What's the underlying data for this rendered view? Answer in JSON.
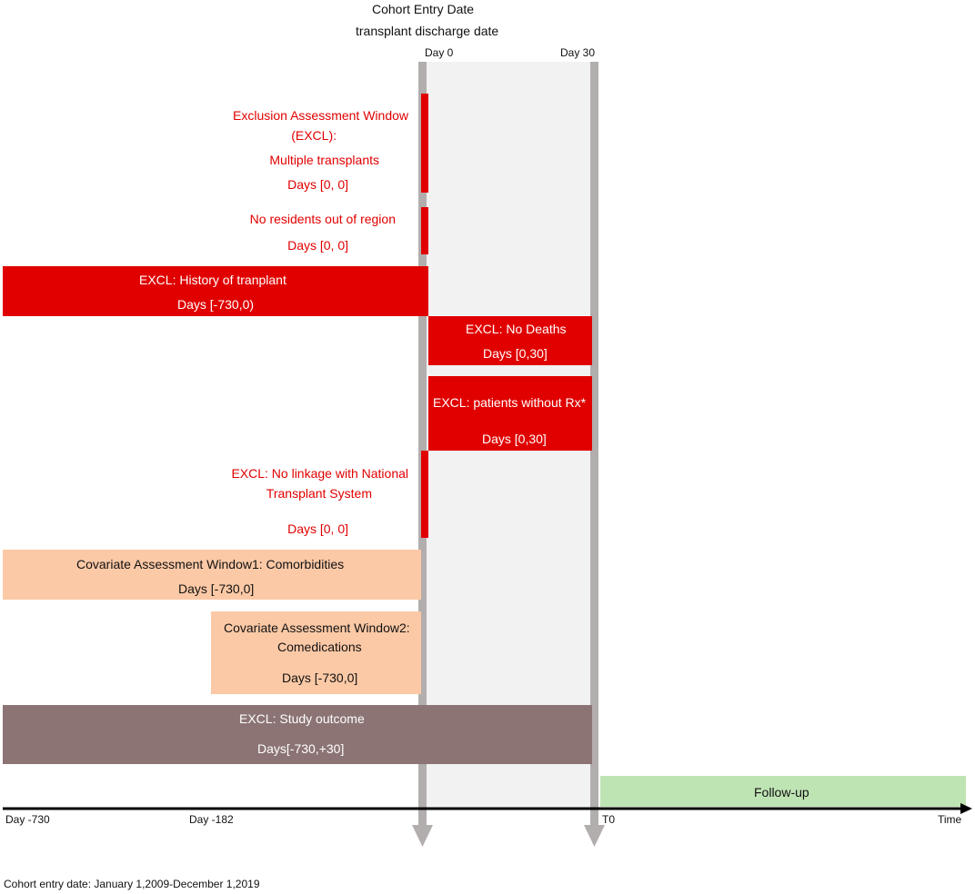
{
  "header": {
    "title": "Cohort Entry Date",
    "subtitle": "transplant discharge date",
    "day0": "Day 0",
    "day30": "Day 30"
  },
  "excl_multiple": {
    "line1": "Exclusion Assessment Window",
    "line2": "(EXCL):",
    "line3": "Multiple transplants",
    "days": "Days [0, 0]"
  },
  "excl_residents": {
    "label": "No residents out of region",
    "days": "Days [0, 0]"
  },
  "excl_history": {
    "label": "EXCL: History of tranplant",
    "days": "Days [-730,0)"
  },
  "excl_deaths": {
    "label": "EXCL: No Deaths",
    "days": "Days [0,30]"
  },
  "excl_rx": {
    "label": "EXCL: patients without  Rx*",
    "days": "Days [0,30]"
  },
  "excl_linkage": {
    "line1": "EXCL: No linkage with National",
    "line2": "Transplant System",
    "days": "Days [0, 0]"
  },
  "cov1": {
    "label": "Covariate Assessment Window1: Comorbidities",
    "days": "Days [-730,0]"
  },
  "cov2": {
    "line1": "Covariate Assessment Window2:",
    "line2": "Comedications",
    "days": "Days [-730,0]"
  },
  "excl_outcome": {
    "label": "EXCL: Study outcome",
    "days": "Days[-730,+30]"
  },
  "followup": {
    "label": "Follow-up"
  },
  "axis": {
    "day_minus_730": "Day -730",
    "day_minus_182": "Day -182",
    "t0": "T0",
    "time": "Time"
  },
  "footer": {
    "note": "Cohort entry date: January 1,2009-December 1,2019"
  },
  "colors": {
    "exclusion_red": "#e00000",
    "covariate_peach": "#fcc9a6",
    "outcome_brown": "#8c7474",
    "followup_green": "#bfe4b4",
    "window_gray": "#f2f2f2",
    "arrow_gray": "#b3aeae"
  }
}
